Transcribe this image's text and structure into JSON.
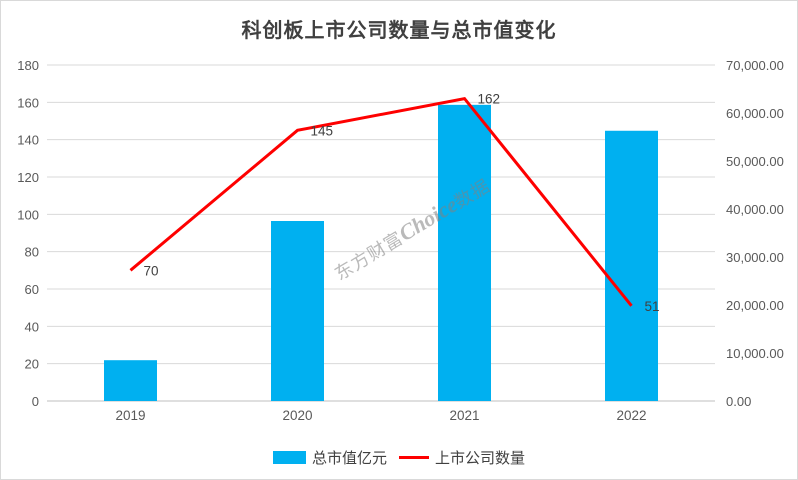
{
  "title": "科创板上市公司数量与总市值变化",
  "watermark": {
    "prefix": "东方财富",
    "brand": "Choice",
    "suffix": "数据"
  },
  "chart_data": {
    "type": "combo",
    "categories": [
      "2019",
      "2020",
      "2021",
      "2022"
    ],
    "series": [
      {
        "name": "总市值亿元",
        "type": "bar",
        "axis": "right",
        "color": "#00b0f0",
        "values": [
          8500,
          37500,
          61700,
          56300
        ]
      },
      {
        "name": "上市公司数量",
        "type": "line",
        "axis": "left",
        "color": "#fe0000",
        "values": [
          70,
          145,
          162,
          51
        ],
        "data_labels": [
          "70",
          "145",
          "162",
          "51"
        ]
      }
    ],
    "left_axis": {
      "min": 0,
      "max": 180,
      "step": 20,
      "ticks": [
        "0",
        "20",
        "40",
        "60",
        "80",
        "100",
        "120",
        "140",
        "160",
        "180"
      ]
    },
    "right_axis": {
      "min": 0,
      "max": 70000,
      "step": 10000,
      "ticks": [
        "0.00",
        "10,000.00",
        "20,000.00",
        "30,000.00",
        "40,000.00",
        "50,000.00",
        "60,000.00",
        "70,000.00"
      ]
    },
    "grid": true,
    "legend_position": "bottom",
    "colors": {
      "grid_line": "#d9d9d9",
      "baseline": "#bfbfbf",
      "tick_text": "#595959",
      "data_label_text": "#404040",
      "title_text": "#404040"
    }
  }
}
